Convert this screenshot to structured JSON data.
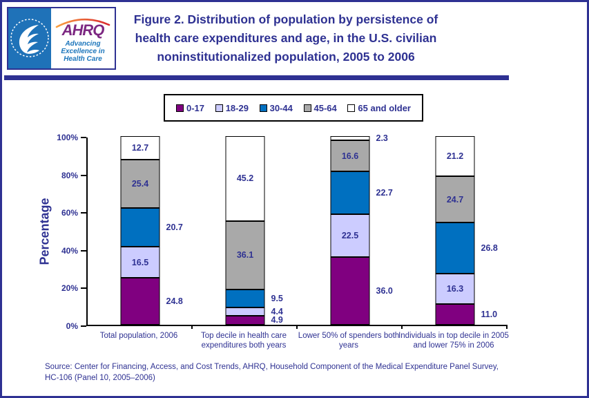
{
  "colors": {
    "navy": "#2E3192",
    "hhs_blue": "#1F72B8",
    "ahrq_purple": "#7D2882",
    "tagline_blue": "#1B75BB",
    "segment_purple": "#800080",
    "segment_lavender": "#CCCCFF",
    "segment_blue": "#0070C0",
    "segment_gray": "#A9A9A9",
    "segment_white": "#FFFFFF"
  },
  "logo": {
    "ahrq_text": "AHRQ",
    "tagline_lines": [
      "Advancing",
      "Excellence in",
      "Health Care"
    ]
  },
  "header": {
    "title_lines": [
      "Figure 2. Distribution of population by persistence of",
      "health care expenditures and age, in the U.S. civilian",
      "noninstitutionalized population, 2005 to 2006"
    ]
  },
  "source": {
    "line1": "Source: Center for Financing, Access, and Cost Trends, AHRQ, Household Component of the Medical Expenditure Panel Survey,",
    "line2": "HC-106 (Panel 10, 2005–2006)"
  },
  "chart_data": {
    "type": "bar",
    "stacked": true,
    "title": "Figure 2. Distribution of population by persistence of health care expenditures and age, in the U.S. civilian noninstitutionalized population, 2005 to 2006",
    "xlabel": "",
    "ylabel": "Percentage",
    "ylim": [
      0,
      100
    ],
    "ytick_values": [
      0,
      20,
      40,
      60,
      80,
      100
    ],
    "ytick_labels": [
      "0%",
      "20%",
      "40%",
      "60%",
      "80%",
      "100%"
    ],
    "grid": false,
    "legend_position": "top",
    "categories": [
      {
        "label": "Total population, 2006",
        "lines": [
          "Total population, 2006"
        ]
      },
      {
        "label": "Top decile in health care expenditures both years",
        "lines": [
          "Top decile in health care",
          "expenditures both years"
        ]
      },
      {
        "label": "Lower 50% of spenders both years",
        "lines": [
          "Lower 50% of spenders both",
          "years"
        ]
      },
      {
        "label": "Individuals in top decile in 2005 and lower 75% in 2006",
        "lines": [
          "Individuals in top decile in 2005",
          "and lower 75% in 2006"
        ]
      }
    ],
    "series": [
      {
        "name": "0-17",
        "color": "#800080",
        "values": [
          24.8,
          4.9,
          36.0,
          11.0
        ],
        "value_labels": [
          "24.8",
          "4.9",
          "36.0",
          "11.0"
        ],
        "label_positions": [
          "outside",
          "outside",
          "outside",
          "outside"
        ]
      },
      {
        "name": "18-29",
        "color": "#CCCCFF",
        "values": [
          16.5,
          4.4,
          22.5,
          16.3
        ],
        "value_labels": [
          "16.5",
          "4.4",
          "22.5",
          "16.3"
        ],
        "label_positions": [
          "inside",
          "outside",
          "inside",
          "inside"
        ]
      },
      {
        "name": "30-44",
        "color": "#0070C0",
        "values": [
          20.7,
          9.5,
          22.7,
          26.8
        ],
        "value_labels": [
          "20.7",
          "9.5",
          "22.7",
          "26.8"
        ],
        "label_positions": [
          "outside",
          "outside",
          "outside",
          "outside"
        ]
      },
      {
        "name": "45-64",
        "color": "#A9A9A9",
        "values": [
          25.4,
          36.1,
          16.6,
          24.7
        ],
        "value_labels": [
          "25.4",
          "36.1",
          "16.6",
          "24.7"
        ],
        "label_positions": [
          "inside",
          "inside",
          "inside",
          "inside"
        ]
      },
      {
        "name": "65 and older",
        "color": "#FFFFFF",
        "values": [
          12.7,
          45.2,
          2.3,
          21.2
        ],
        "value_labels": [
          "12.7",
          "45.2",
          "2.3",
          "21.2"
        ],
        "label_positions": [
          "inside",
          "inside",
          "outside",
          "inside"
        ]
      }
    ]
  }
}
